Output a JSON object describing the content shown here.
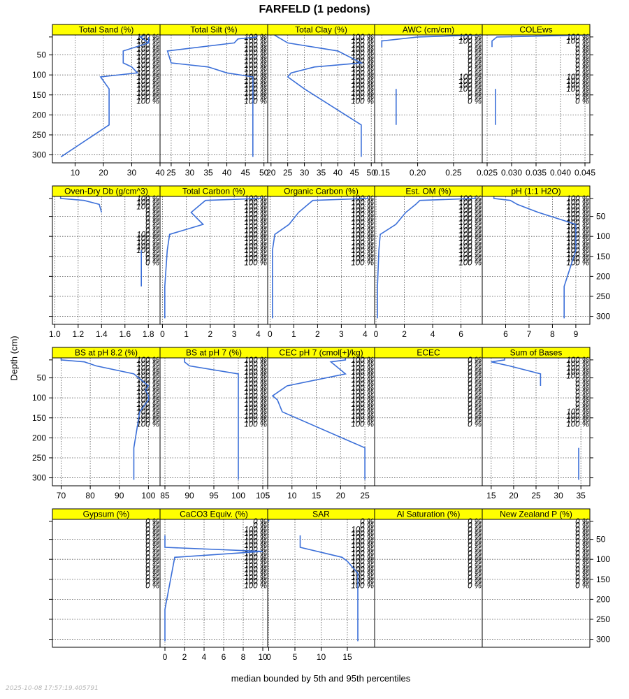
{
  "title": "FARFELD (1 pedons)",
  "y_axis_label": "Depth (cm)",
  "caption": "median bounded by 5th and 95th percentiles",
  "timestamp": "2025-10-08 17:57:19.405791",
  "colors": {
    "strip": "#ffff00",
    "line": "#3b6fd8",
    "grid": "#555555",
    "frame": "#000000"
  },
  "chart_data": {
    "type": "line",
    "depth_axis": {
      "ylim": [
        0,
        320
      ],
      "ticks": [
        50,
        100,
        150,
        200,
        250,
        300
      ],
      "reversed": true
    },
    "pct_depths": [
      5,
      15,
      25,
      35,
      45,
      55,
      65,
      75,
      85,
      95,
      105,
      115,
      125,
      135,
      145,
      155,
      165
    ],
    "panels": [
      {
        "name": "Total Sand (%)",
        "xlim": [
          2,
          40
        ],
        "ticks": [
          10,
          20,
          30,
          40
        ],
        "pct": [
          "100 %",
          "100 %",
          "100 %",
          "100 %",
          "100 %",
          "100 %",
          "100 %",
          "100 %",
          "100 %",
          "100 %",
          "100 %",
          "100 %",
          "100 %",
          "100 %",
          "100 %",
          "100 %",
          "100 %"
        ],
        "series": [
          {
            "depth": [
              0,
              5,
              10,
              20,
              40,
              70,
              80,
              95,
              105,
              135,
              225,
              305
            ],
            "value": [
              35,
              33,
              34,
              36,
              27,
              27,
              30,
              32,
              19,
              22,
              22,
              5
            ]
          },
          {
            "depth": [
              5,
              10,
              20
            ],
            "value": [
              36,
              36,
              36
            ]
          }
        ]
      },
      {
        "name": "Total Silt (%)",
        "xlim": [
          22,
          51
        ],
        "ticks": [
          25,
          30,
          35,
          40,
          45,
          50
        ],
        "pct": [
          "100 %",
          "100 %",
          "100 %",
          "100 %",
          "100 %",
          "100 %",
          "100 %",
          "100 %",
          "100 %",
          "100 %",
          "100 %",
          "100 %",
          "100 %",
          "100 %",
          "100 %",
          "100 %",
          "100 %"
        ],
        "series": [
          {
            "depth": [
              0,
              5,
              10,
              20,
              40,
              70,
              80,
              95,
              105,
              135,
              225,
              305
            ],
            "value": [
              48,
              48,
              43,
              42,
              24,
              25,
              35,
              40,
              47,
              47,
              47,
              47
            ]
          }
        ]
      },
      {
        "name": "Total Clay (%)",
        "xlim": [
          19,
          51
        ],
        "ticks": [
          20,
          25,
          30,
          35,
          40,
          45,
          50
        ],
        "pct": [
          "100 %",
          "100 %",
          "100 %",
          "100 %",
          "100 %",
          "100 %",
          "100 %",
          "100 %",
          "100 %",
          "100 %",
          "100 %",
          "100 %",
          "100 %",
          "100 %",
          "100 %",
          "100 %",
          "100 %"
        ],
        "series": [
          {
            "depth": [
              0,
              5,
              10,
              20,
              40,
              70,
              80,
              95,
              105,
              135,
              225,
              305
            ],
            "value": [
              21,
              22,
              23,
              25,
              40,
              47,
              33,
              26,
              25,
              30,
              47,
              47
            ]
          }
        ]
      },
      {
        "name": "AWC (cm/cm)",
        "xlim": [
          0.14,
          0.29
        ],
        "ticks": [
          0.15,
          0.2,
          0.25
        ],
        "pct": [
          "100 %",
          "100 %",
          "0 %",
          "0 %",
          "0 %",
          "0 %",
          "0 %",
          "0 %",
          "0 %",
          "0 %",
          "100 %",
          "100 %",
          "100 %",
          "100 %",
          "0 %",
          "0 %",
          "0 %"
        ],
        "series": [
          {
            "depth": [
              0,
              5,
              15,
              30
            ],
            "value": [
              0.29,
              0.2,
              0.15,
              0.15
            ]
          },
          {
            "depth": [
              135,
              225
            ],
            "value": [
              0.17,
              0.17
            ]
          }
        ]
      },
      {
        "name": "COLEws",
        "xlim": [
          0.024,
          0.046
        ],
        "ticks": [
          0.025,
          0.03,
          0.035,
          0.04,
          0.045
        ],
        "pct": [
          "100 %",
          "100 %",
          "0 %",
          "0 %",
          "0 %",
          "0 %",
          "0 %",
          "0 %",
          "0 %",
          "0 %",
          "100 %",
          "100 %",
          "100 %",
          "100 %",
          "0 %",
          "0 %",
          "0 %"
        ],
        "series": [
          {
            "depth": [
              0,
              5,
              15,
              30
            ],
            "value": [
              0.046,
              0.027,
              0.026,
              0.026
            ]
          },
          {
            "depth": [
              135,
              225
            ],
            "value": [
              0.0267,
              0.0267
            ]
          }
        ]
      },
      {
        "name": "Oven-Dry Db (g/cm^3)",
        "xlim": [
          0.98,
          1.9
        ],
        "ticks": [
          1.0,
          1.2,
          1.4,
          1.6,
          1.8
        ],
        "pct": [
          "100 %",
          "100 %",
          "100 %",
          "0 %",
          "0 %",
          "0 %",
          "0 %",
          "0 %",
          "0 %",
          "100 %",
          "100 %",
          "100 %",
          "100 %",
          "100 %",
          "0 %",
          "0 %",
          "0 %"
        ],
        "series": [
          {
            "depth": [
              0,
              5,
              10,
              20,
              40
            ],
            "value": [
              1.05,
              1.05,
              1.25,
              1.38,
              1.4
            ]
          },
          {
            "depth": [
              135,
              225
            ],
            "value": [
              1.74,
              1.74
            ]
          }
        ]
      },
      {
        "name": "Total Carbon (%)",
        "xlim": [
          -0.1,
          4.4
        ],
        "ticks": [
          0,
          1,
          2,
          3,
          4
        ],
        "pct": [
          "100 %",
          "100 %",
          "100 %",
          "100 %",
          "100 %",
          "100 %",
          "100 %",
          "100 %",
          "100 %",
          "100 %",
          "100 %",
          "100 %",
          "100 %",
          "100 %",
          "100 %",
          "100 %",
          "100 %"
        ],
        "series": [
          {
            "depth": [
              0,
              5,
              10,
              20,
              40,
              70,
              95,
              135,
              225,
              305
            ],
            "value": [
              4.1,
              4.1,
              1.8,
              1.6,
              1.2,
              1.7,
              0.3,
              0.2,
              0.1,
              0.1
            ]
          }
        ]
      },
      {
        "name": "Organic Carbon (%)",
        "xlim": [
          -0.1,
          4.4
        ],
        "ticks": [
          0,
          1,
          2,
          3,
          4
        ],
        "pct": [
          "100 %",
          "100 %",
          "100 %",
          "100 %",
          "100 %",
          "100 %",
          "100 %",
          "100 %",
          "100 %",
          "100 %",
          "100 %",
          "100 %",
          "100 %",
          "100 %",
          "100 %",
          "100 %",
          "100 %"
        ],
        "series": [
          {
            "depth": [
              0,
              5,
              10,
              20,
              40,
              70,
              95,
              135,
              225,
              305
            ],
            "value": [
              4.1,
              4.1,
              1.8,
              1.6,
              1.2,
              0.8,
              0.2,
              0.1,
              0.1,
              0.1
            ]
          }
        ]
      },
      {
        "name": "Est. OM (%)",
        "xlim": [
          -0.1,
          7.5
        ],
        "ticks": [
          0,
          2,
          4,
          6
        ],
        "pct": [
          "100 %",
          "100 %",
          "100 %",
          "100 %",
          "100 %",
          "100 %",
          "100 %",
          "100 %",
          "100 %",
          "100 %",
          "100 %",
          "100 %",
          "100 %",
          "100 %",
          "100 %",
          "100 %",
          "100 %"
        ],
        "series": [
          {
            "depth": [
              0,
              5,
              10,
              20,
              40,
              70,
              95,
              135,
              225,
              305
            ],
            "value": [
              7.0,
              7.0,
              3.1,
              2.8,
              2.1,
              1.4,
              0.3,
              0.2,
              0.1,
              0.1
            ]
          }
        ]
      },
      {
        "name": "pH (1:1 H2O)",
        "xlim": [
          5.0,
          9.6
        ],
        "ticks": [
          6,
          7,
          8,
          9
        ],
        "pct": [
          "100 %",
          "100 %",
          "100 %",
          "100 %",
          "100 %",
          "100 %",
          "100 %",
          "100 %",
          "100 %",
          "100 %",
          "100 %",
          "100 %",
          "100 %",
          "100 %",
          "100 %",
          "100 %",
          "100 %"
        ],
        "series": [
          {
            "depth": [
              0,
              5,
              10,
              20,
              40,
              70,
              95,
              135,
              225,
              305
            ],
            "value": [
              5.5,
              5.5,
              6.2,
              6.5,
              7.4,
              9.0,
              9.0,
              9.0,
              8.5,
              8.5
            ]
          }
        ]
      },
      {
        "name": "BS at pH 8.2 (%)",
        "xlim": [
          67,
          104
        ],
        "ticks": [
          70,
          80,
          90,
          100
        ],
        "pct": [
          "100 %",
          "100 %",
          "100 %",
          "100 %",
          "100 %",
          "100 %",
          "100 %",
          "100 %",
          "100 %",
          "100 %",
          "100 %",
          "100 %",
          "100 %",
          "100 %",
          "100 %",
          "100 %",
          "100 %"
        ],
        "series": [
          {
            "depth": [
              0,
              5,
              10,
              20,
              40,
              70,
              80,
              95,
              105,
              135,
              225,
              305
            ],
            "value": [
              70,
              70,
              78,
              82,
              95,
              100,
              99,
              100,
              100,
              97,
              95,
              95
            ]
          }
        ]
      },
      {
        "name": "BS at pH 7 (%)",
        "xlim": [
          84,
          106
        ],
        "ticks": [
          85,
          90,
          95,
          100,
          105
        ],
        "pct": [
          "100 %",
          "100 %",
          "100 %",
          "100 %",
          "100 %",
          "100 %",
          "100 %",
          "100 %",
          "100 %",
          "100 %",
          "100 %",
          "100 %",
          "100 %",
          "100 %",
          "100 %",
          "100 %",
          "100 %"
        ],
        "series": [
          {
            "depth": [
              0,
              5,
              10,
              20,
              40,
              305
            ],
            "value": [
              89,
              89,
              89,
              90,
              100,
              100
            ]
          }
        ]
      },
      {
        "name": "CEC pH 7 (cmol[+]/kg)",
        "xlim": [
          5,
          27
        ],
        "ticks": [
          5,
          10,
          15,
          20,
          25
        ],
        "pct": [
          "100 %",
          "100 %",
          "100 %",
          "100 %",
          "100 %",
          "100 %",
          "100 %",
          "100 %",
          "100 %",
          "100 %",
          "100 %",
          "100 %",
          "100 %",
          "100 %",
          "100 %",
          "100 %",
          "100 %"
        ],
        "series": [
          {
            "depth": [
              0,
              5,
              10,
              20,
              40,
              70,
              95,
              105,
              135,
              225,
              305
            ],
            "value": [
              21,
              21,
              18,
              19,
              21,
              9,
              6,
              7,
              8,
              25,
              25
            ]
          }
        ]
      },
      {
        "name": "ECEC",
        "xlim": [
          0,
          1
        ],
        "ticks": [],
        "pct": [
          "0 %",
          "0 %",
          "0 %",
          "0 %",
          "0 %",
          "0 %",
          "0 %",
          "0 %",
          "0 %",
          "0 %",
          "0 %",
          "0 %",
          "0 %",
          "0 %",
          "0 %",
          "0 %",
          "0 %"
        ],
        "series": []
      },
      {
        "name": "Sum of Bases",
        "xlim": [
          13,
          37
        ],
        "ticks": [
          15,
          20,
          25,
          30,
          35
        ],
        "pct": [
          "100 %",
          "100 %",
          "100 %",
          "100 %",
          "100 %",
          "0 %",
          "0 %",
          "0 %",
          "0 %",
          "0 %",
          "0 %",
          "0 %",
          "0 %",
          "100 %",
          "100 %",
          "100 %",
          "100 %"
        ],
        "series": [
          {
            "depth": [
              0,
              5,
              10,
              20,
              40,
              70
            ],
            "value": [
              18,
              18,
              15,
              19,
              26,
              26
            ]
          },
          {
            "depth": [
              225,
              305
            ],
            "value": [
              34.5,
              34.5
            ]
          }
        ]
      },
      {
        "name": "Gypsum (%)",
        "xlim": [
          0,
          1
        ],
        "ticks": [],
        "pct": [
          "0 %",
          "0 %",
          "0 %",
          "0 %",
          "0 %",
          "0 %",
          "0 %",
          "0 %",
          "0 %",
          "0 %",
          "0 %",
          "0 %",
          "0 %",
          "0 %",
          "0 %",
          "0 %",
          "0 %"
        ],
        "series": []
      },
      {
        "name": "CaCO3 Equiv. (%)",
        "xlim": [
          -0.5,
          10.5
        ],
        "ticks": [
          0,
          2,
          4,
          6,
          8,
          10
        ],
        "pct": [
          "0 %",
          "0 %",
          "100 %",
          "100 %",
          "100 %",
          "100 %",
          "100 %",
          "100 %",
          "100 %",
          "100 %",
          "100 %",
          "100 %",
          "100 %",
          "100 %",
          "100 %",
          "100 %",
          "100 %"
        ],
        "series": [
          {
            "depth": [
              40,
              70,
              80,
              95,
              225,
              305
            ],
            "value": [
              0,
              0,
              10,
              1,
              0,
              0
            ]
          }
        ]
      },
      {
        "name": "SAR",
        "xlim": [
          -0.2,
          20.2
        ],
        "ticks": [
          0,
          5,
          10,
          15
        ],
        "pct": [
          "0 %",
          "0 %",
          "100 %",
          "100 %",
          "100 %",
          "100 %",
          "100 %",
          "100 %",
          "100 %",
          "100 %",
          "100 %",
          "100 %",
          "100 %",
          "100 %",
          "100 %",
          "100 %",
          "100 %"
        ],
        "series": [
          {
            "depth": [
              0,
              5
            ],
            "value": [
              0,
              0
            ]
          },
          {
            "depth": [
              40,
              70,
              95,
              105,
              135,
              305
            ],
            "value": [
              6,
              6,
              14,
              15,
              17,
              17
            ]
          }
        ]
      },
      {
        "name": "Al Saturation (%)",
        "xlim": [
          0,
          1
        ],
        "ticks": [],
        "pct": [
          "0 %",
          "0 %",
          "0 %",
          "0 %",
          "0 %",
          "0 %",
          "0 %",
          "0 %",
          "0 %",
          "0 %",
          "0 %",
          "0 %",
          "0 %",
          "0 %",
          "0 %",
          "0 %",
          "0 %"
        ],
        "series": []
      },
      {
        "name": "New Zealand P (%)",
        "xlim": [
          0,
          1
        ],
        "ticks": [],
        "pct": [
          "0 %",
          "0 %",
          "0 %",
          "0 %",
          "0 %",
          "0 %",
          "0 %",
          "0 %",
          "0 %",
          "0 %",
          "0 %",
          "0 %",
          "0 %",
          "0 %",
          "0 %",
          "0 %",
          "0 %"
        ],
        "series": []
      }
    ]
  }
}
